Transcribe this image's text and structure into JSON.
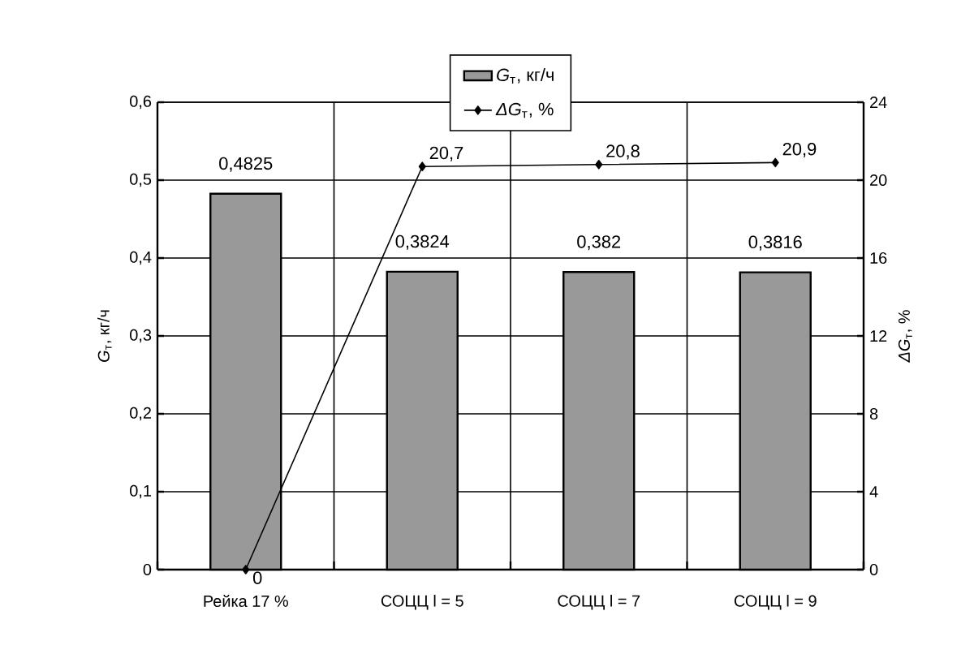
{
  "chart_data": {
    "type": "bar",
    "categories": [
      "Рейка 17 %",
      "СОЦЦ l = 5",
      "СОЦЦ l = 7",
      "СОЦЦ l = 9"
    ],
    "ylabel": "*G*$_{т}$, кг/ч",
    "y2label": "*ΔG*$_{т}$, %",
    "ylim": [
      0,
      0.6
    ],
    "yticks": [
      0,
      {
        "value": 0.1,
        "label": "0,1"
      },
      {
        "value": 0.2,
        "label": "0,2"
      },
      {
        "value": 0.3,
        "label": "0,3"
      },
      {
        "value": 0.4,
        "label": "0,4"
      },
      {
        "value": 0.5,
        "label": "0,5"
      },
      {
        "value": 0.6,
        "label": "0,6"
      }
    ],
    "y2lim": [
      0,
      24
    ],
    "y2ticks": [
      0,
      4,
      8,
      12,
      16,
      20,
      24
    ],
    "grid": true,
    "legend": "top",
    "series": [
      {
        "name": "*G*$_{т}$, кг/ч",
        "color": "#999999",
        "values": [
          0.4825,
          0.3824,
          0.382,
          0.3816
        ],
        "value_labels": [
          "0,4825",
          "0,3824",
          "0,382",
          "0,3816"
        ]
      },
      {
        "name": "*ΔG*$_{т}$, %",
        "type": "line",
        "axis": "y2",
        "color": "#000000",
        "marker": "diamond",
        "line_style": "solid",
        "values": [
          0,
          20.7,
          20.8,
          20.9
        ],
        "value_labels": [
          "0",
          "20,7",
          "20,8",
          "20,9"
        ]
      }
    ]
  }
}
